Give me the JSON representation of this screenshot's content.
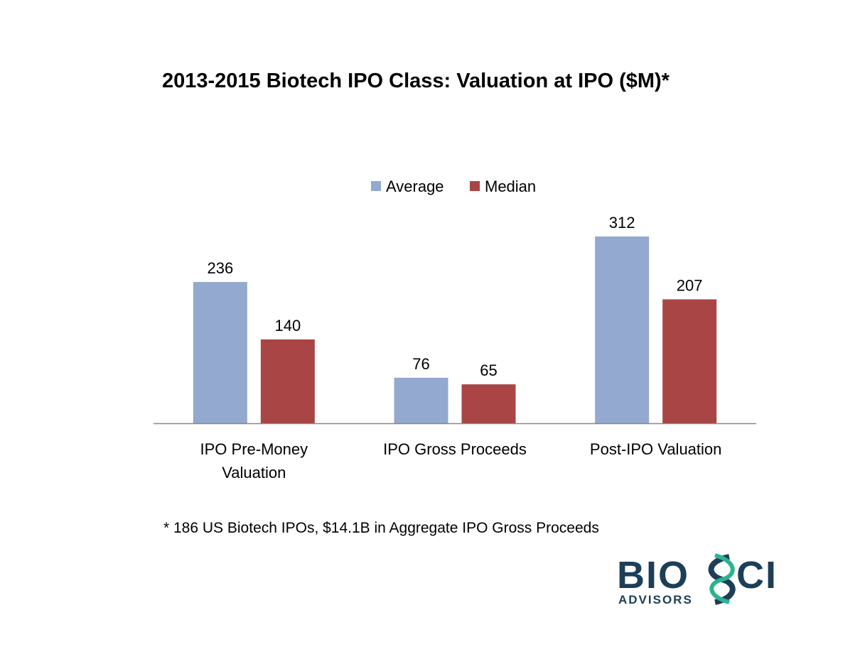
{
  "chart_data": {
    "type": "bar",
    "title": "2013-2015 Biotech IPO Class:  Valuation at IPO ($M)*",
    "categories": [
      [
        "IPO Pre-Money",
        "Valuation"
      ],
      [
        "IPO Gross Proceeds"
      ],
      [
        "Post-IPO Valuation"
      ]
    ],
    "series": [
      {
        "name": "Average",
        "color": "#93A9CF",
        "values": [
          236,
          76,
          312
        ]
      },
      {
        "name": "Median",
        "color": "#A94544",
        "values": [
          140,
          65,
          207
        ]
      }
    ],
    "xlabel": "",
    "ylabel": "",
    "ylim": [
      0,
      330
    ],
    "grid": false,
    "legend": "top-center",
    "data_labels": true
  },
  "footnote": "* 186 US Biotech IPOs, $14.1B in Aggregate IPO Gross Proceeds",
  "logo": {
    "name": "BIOSCI",
    "subtitle": "ADVISORS",
    "colors": {
      "dark": "#1D3E57",
      "teal": "#2DB38F"
    }
  }
}
